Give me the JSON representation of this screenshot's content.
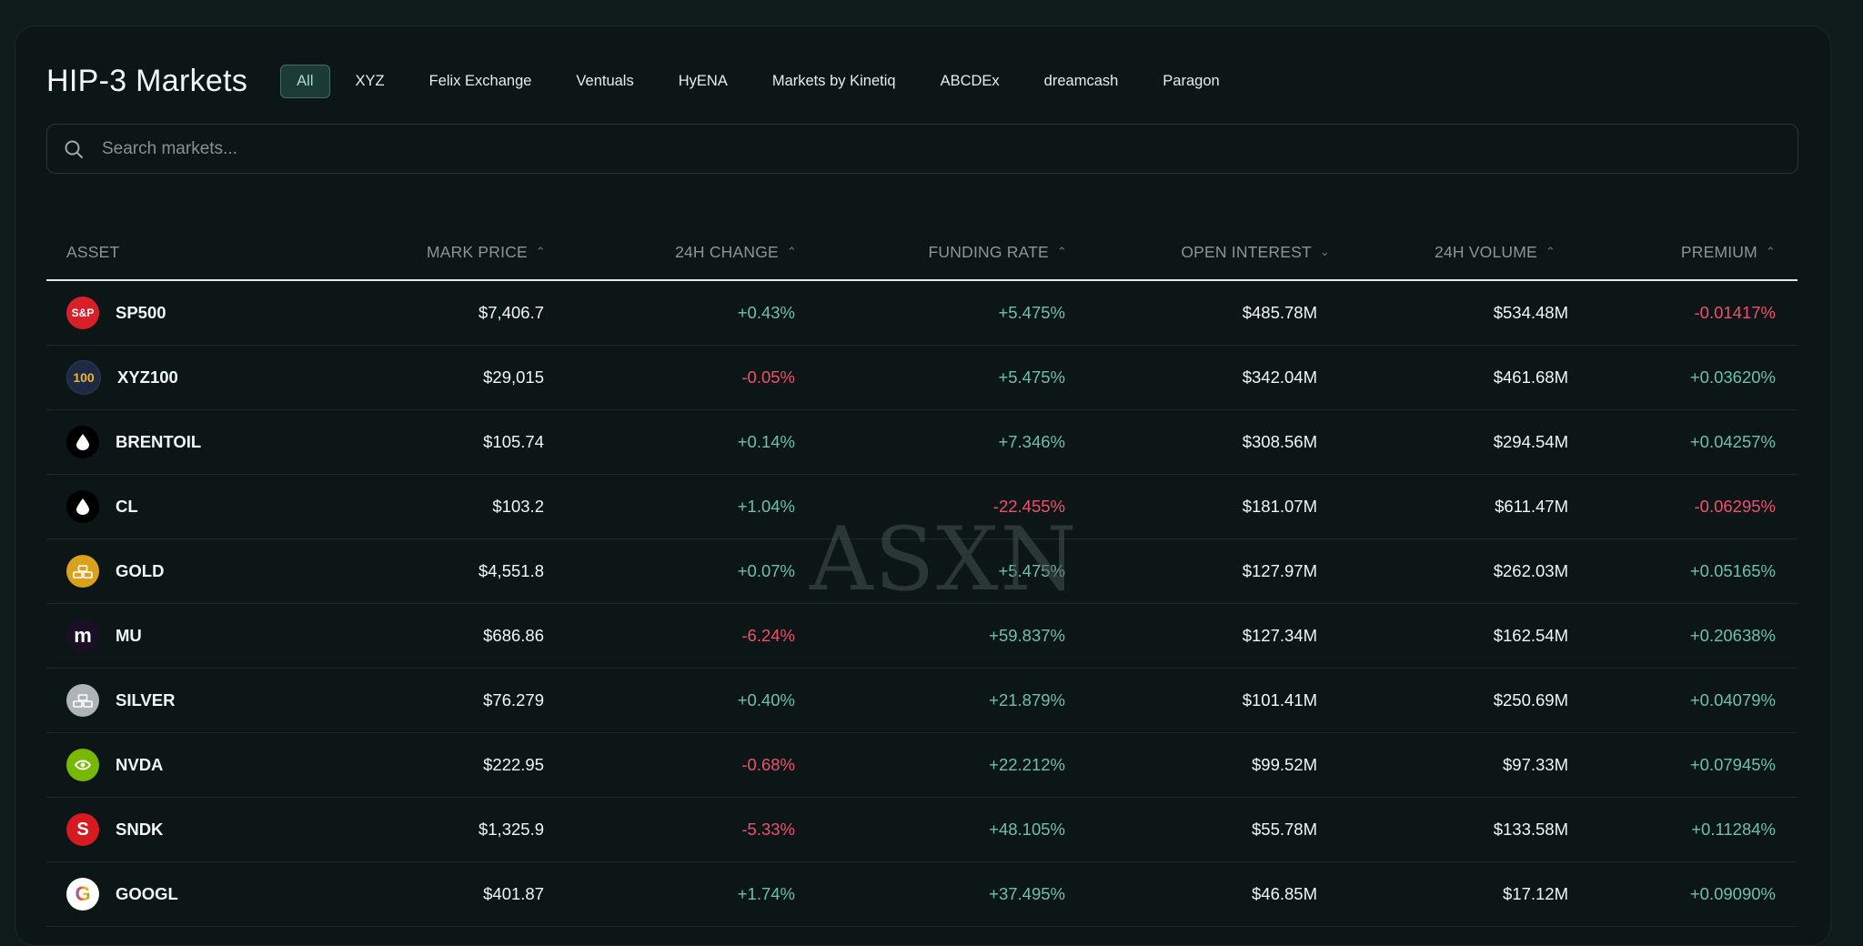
{
  "title": "HIP-3 Markets",
  "tabs": [
    {
      "label": "All",
      "active": true
    },
    {
      "label": "XYZ"
    },
    {
      "label": "Felix Exchange"
    },
    {
      "label": "Ventuals"
    },
    {
      "label": "HyENA"
    },
    {
      "label": "Markets by Kinetiq"
    },
    {
      "label": "ABCDEx"
    },
    {
      "label": "dreamcash"
    },
    {
      "label": "Paragon"
    }
  ],
  "search": {
    "placeholder": "Search markets..."
  },
  "columns": {
    "asset": "ASSET",
    "mark_price": "MARK PRICE",
    "change": "24H CHANGE",
    "funding": "FUNDING RATE",
    "oi": "OPEN INTEREST",
    "volume": "24H VOLUME",
    "premium": "PREMIUM"
  },
  "rows": [
    {
      "symbol": "SP500",
      "icon_text": "S&P",
      "icon": "sp500-icon",
      "mark_price": "$7,406.7",
      "change": "+0.43%",
      "funding": "+5.475%",
      "oi": "$485.78M",
      "volume": "$534.48M",
      "premium": "-0.01417%"
    },
    {
      "symbol": "XYZ100",
      "icon_text": "100",
      "icon": "xyz100-icon",
      "mark_price": "$29,015",
      "change": "-0.05%",
      "funding": "+5.475%",
      "oi": "$342.04M",
      "volume": "$461.68M",
      "premium": "+0.03620%"
    },
    {
      "symbol": "BRENTOIL",
      "icon_text": "",
      "icon": "oil-drop-icon",
      "mark_price": "$105.74",
      "change": "+0.14%",
      "funding": "+7.346%",
      "oi": "$308.56M",
      "volume": "$294.54M",
      "premium": "+0.04257%"
    },
    {
      "symbol": "CL",
      "icon_text": "",
      "icon": "oil-drop-icon",
      "mark_price": "$103.2",
      "change": "+1.04%",
      "funding": "-22.455%",
      "oi": "$181.07M",
      "volume": "$611.47M",
      "premium": "-0.06295%"
    },
    {
      "symbol": "GOLD",
      "icon_text": "",
      "icon": "gold-bars-icon",
      "mark_price": "$4,551.8",
      "change": "+0.07%",
      "funding": "+5.475%",
      "oi": "$127.97M",
      "volume": "$262.03M",
      "premium": "+0.05165%"
    },
    {
      "symbol": "MU",
      "icon_text": "m",
      "icon": "micron-icon",
      "mark_price": "$686.86",
      "change": "-6.24%",
      "funding": "+59.837%",
      "oi": "$127.34M",
      "volume": "$162.54M",
      "premium": "+0.20638%"
    },
    {
      "symbol": "SILVER",
      "icon_text": "",
      "icon": "silver-bars-icon",
      "mark_price": "$76.279",
      "change": "+0.40%",
      "funding": "+21.879%",
      "oi": "$101.41M",
      "volume": "$250.69M",
      "premium": "+0.04079%"
    },
    {
      "symbol": "NVDA",
      "icon_text": "",
      "icon": "nvidia-icon",
      "mark_price": "$222.95",
      "change": "-0.68%",
      "funding": "+22.212%",
      "oi": "$99.52M",
      "volume": "$97.33M",
      "premium": "+0.07945%"
    },
    {
      "symbol": "SNDK",
      "icon_text": "S",
      "icon": "sandisk-icon",
      "mark_price": "$1,325.9",
      "change": "-5.33%",
      "funding": "+48.105%",
      "oi": "$55.78M",
      "volume": "$133.58M",
      "premium": "+0.11284%"
    },
    {
      "symbol": "GOOGL",
      "icon_text": "G",
      "icon": "google-icon",
      "mark_price": "$401.87",
      "change": "+1.74%",
      "funding": "+37.495%",
      "oi": "$46.85M",
      "volume": "$17.12M",
      "premium": "+0.09090%"
    }
  ],
  "watermark": "ASXN",
  "colors": {
    "positive": "#6fbfa9",
    "negative": "#f0506e",
    "accent": "#1c3a36"
  }
}
